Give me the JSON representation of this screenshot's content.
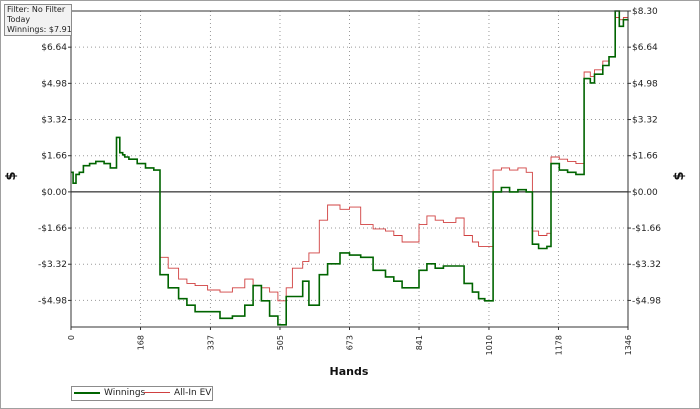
{
  "info": {
    "filter": "Filter: No Filter",
    "period": "Today",
    "winnings": "Winnings: $7.91"
  },
  "legend": {
    "winnings_label": "Winnings",
    "allin_label": "All-In EV"
  },
  "colors": {
    "winnings": "#006400",
    "allin": "#d04040",
    "zero_line": "#000000",
    "grid": "#9a9a9a"
  },
  "chart_data": {
    "type": "line",
    "title": "",
    "xlabel": "Hands",
    "ylabel": "$",
    "xlim": [
      0,
      1346
    ],
    "ylim": [
      -6.2,
      8.3
    ],
    "x_ticks": [
      0,
      168,
      337,
      505,
      673,
      841,
      1010,
      1178,
      1346
    ],
    "y_ticks": [
      -4.98,
      -3.32,
      -1.66,
      0.0,
      1.66,
      3.32,
      4.98,
      6.64,
      8.3
    ],
    "y_tick_labels": [
      "-$4.98",
      "-$3.32",
      "-$1.66",
      "$0.00",
      "$1.66",
      "$3.32",
      "$4.98",
      "$6.64",
      "$8.30"
    ],
    "grid": true,
    "legend_position": "bottom-left",
    "series": [
      {
        "name": "Winnings",
        "x": [
          0,
          5,
          12,
          20,
          30,
          45,
          60,
          80,
          95,
          110,
          118,
          125,
          130,
          140,
          160,
          180,
          200,
          215,
          235,
          260,
          280,
          300,
          330,
          360,
          390,
          420,
          440,
          460,
          480,
          500,
          520,
          535,
          560,
          575,
          600,
          620,
          650,
          673,
          700,
          730,
          760,
          780,
          800,
          841,
          860,
          880,
          900,
          930,
          950,
          970,
          985,
          1000,
          1020,
          1040,
          1060,
          1080,
          1100,
          1115,
          1130,
          1150,
          1160,
          1180,
          1200,
          1220,
          1240,
          1255,
          1265,
          1285,
          1300,
          1315,
          1325,
          1335,
          1346
        ],
        "values": [
          0.9,
          0.4,
          0.8,
          0.9,
          1.2,
          1.3,
          1.4,
          1.3,
          1.1,
          2.5,
          1.8,
          1.7,
          1.6,
          1.5,
          1.3,
          1.1,
          1.0,
          -3.8,
          -4.4,
          -4.9,
          -5.2,
          -5.5,
          -5.5,
          -5.8,
          -5.7,
          -5.2,
          -4.3,
          -5.0,
          -5.7,
          -6.1,
          -4.8,
          -4.8,
          -4.1,
          -5.2,
          -3.8,
          -3.3,
          -2.8,
          -2.9,
          -3.0,
          -3.6,
          -3.9,
          -4.1,
          -4.4,
          -3.6,
          -3.3,
          -3.5,
          -3.4,
          -3.4,
          -4.2,
          -4.6,
          -4.9,
          -5.0,
          0.0,
          0.2,
          0.0,
          0.1,
          0.0,
          -2.4,
          -2.6,
          -2.5,
          1.3,
          1.0,
          0.9,
          0.8,
          5.2,
          5.0,
          5.4,
          5.8,
          6.2,
          8.3,
          7.6,
          7.9,
          7.91
        ]
      },
      {
        "name": "All-In EV",
        "x": [
          0,
          5,
          12,
          20,
          30,
          45,
          60,
          80,
          95,
          110,
          118,
          125,
          130,
          140,
          160,
          180,
          200,
          215,
          235,
          260,
          280,
          300,
          330,
          360,
          390,
          420,
          440,
          460,
          480,
          500,
          520,
          535,
          560,
          575,
          600,
          620,
          650,
          673,
          700,
          730,
          760,
          780,
          800,
          841,
          860,
          880,
          900,
          930,
          950,
          970,
          985,
          1000,
          1020,
          1040,
          1060,
          1080,
          1100,
          1115,
          1130,
          1150,
          1160,
          1180,
          1200,
          1220,
          1240,
          1255,
          1265,
          1285,
          1300,
          1315,
          1325,
          1335,
          1346
        ],
        "values": [
          0.9,
          0.4,
          0.8,
          0.9,
          1.2,
          1.3,
          1.4,
          1.3,
          1.1,
          2.5,
          1.8,
          1.7,
          1.6,
          1.5,
          1.3,
          1.1,
          1.0,
          -3.0,
          -3.5,
          -4.0,
          -4.2,
          -4.3,
          -4.5,
          -4.6,
          -4.4,
          -4.0,
          -4.3,
          -4.4,
          -4.6,
          -5.0,
          -4.4,
          -3.5,
          -3.2,
          -2.8,
          -1.3,
          -0.6,
          -0.8,
          -0.7,
          -1.5,
          -1.7,
          -1.8,
          -2.0,
          -2.3,
          -1.5,
          -1.1,
          -1.3,
          -1.4,
          -1.2,
          -2.0,
          -2.3,
          -2.5,
          -2.5,
          1.0,
          1.1,
          1.0,
          1.1,
          0.9,
          -1.8,
          -2.0,
          -1.9,
          1.6,
          1.5,
          1.4,
          1.3,
          5.5,
          5.3,
          5.6,
          6.0,
          6.2,
          8.0,
          7.9,
          8.0,
          8.1
        ]
      }
    ]
  }
}
